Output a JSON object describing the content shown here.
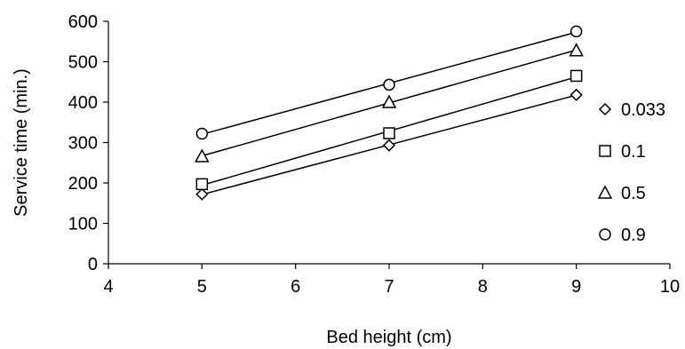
{
  "chart_data": {
    "type": "scatter",
    "xlabel": "Bed height (cm)",
    "ylabel": "Service time (min.)",
    "xlim": [
      4,
      10
    ],
    "ylim": [
      0,
      600
    ],
    "x_ticks": [
      4,
      5,
      6,
      7,
      8,
      9,
      10
    ],
    "y_ticks": [
      0,
      100,
      200,
      300,
      400,
      500,
      600
    ],
    "grid": false,
    "legend_position": "right",
    "trendlines": "linear",
    "series": [
      {
        "name": "0.033",
        "marker": "diamond",
        "x": [
          5,
          7,
          9
        ],
        "y": [
          172,
          293,
          418
        ]
      },
      {
        "name": "0.1",
        "marker": "square",
        "x": [
          5,
          7,
          9
        ],
        "y": [
          197,
          323,
          465
        ]
      },
      {
        "name": "0.5",
        "marker": "triangle",
        "x": [
          5,
          7,
          9
        ],
        "y": [
          266,
          400,
          528
        ]
      },
      {
        "name": "0.9",
        "marker": "circle",
        "x": [
          5,
          7,
          9
        ],
        "y": [
          322,
          443,
          575
        ]
      }
    ]
  }
}
